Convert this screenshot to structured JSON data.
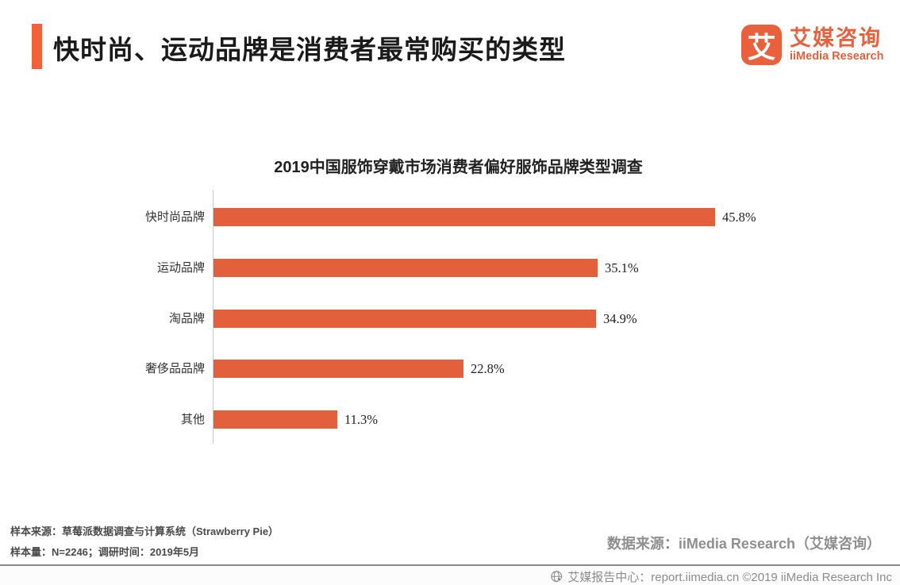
{
  "header": {
    "title": "快时尚、运动品牌是消费者最常购买的类型",
    "accent_color": "#F2613A"
  },
  "logo": {
    "icon_char": "艾",
    "name_cn": "艾媒咨询",
    "name_en": "iiMedia Research",
    "brand_color": "#E8613C"
  },
  "chart_data": {
    "type": "bar",
    "orientation": "horizontal",
    "title": "2019中国服饰穿戴市场消费者偏好服饰品牌类型调查",
    "categories": [
      "快时尚品牌",
      "运动品牌",
      "淘品牌",
      "奢侈品品牌",
      "其他"
    ],
    "values": [
      45.8,
      35.1,
      34.9,
      22.8,
      11.3
    ],
    "value_labels": [
      "45.8%",
      "35.1%",
      "34.9%",
      "22.8%",
      "11.3%"
    ],
    "bar_color": "#E2613C",
    "axis_color": "#C9C9C9",
    "xlim": [
      0,
      46
    ],
    "grid": false,
    "legend": false
  },
  "notes": {
    "line1": "样本来源：草莓派数据调查与计算系统（Strawberry Pie）",
    "line2": "样本量：N=2246；调研时间：2019年5月"
  },
  "source": {
    "text": "数据来源：iiMedia Research（艾媒咨询）"
  },
  "footer": {
    "text": "艾媒报告中心：report.iimedia.cn  ©2019  iiMedia Research Inc"
  }
}
